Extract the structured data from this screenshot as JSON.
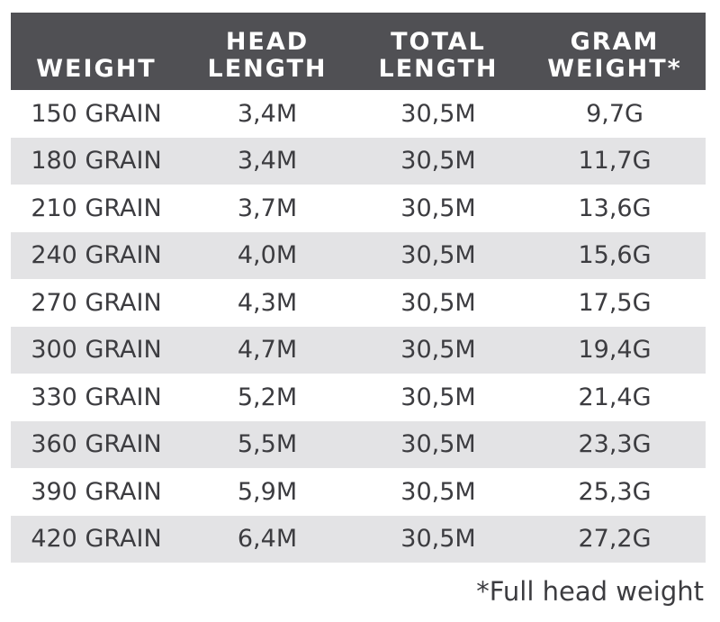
{
  "table": {
    "headers": [
      {
        "lines": [
          "",
          "WEIGHT"
        ]
      },
      {
        "lines": [
          "HEAD",
          "LENGTH"
        ]
      },
      {
        "lines": [
          "TOTAL",
          "LENGTH"
        ]
      },
      {
        "lines": [
          "GRAM",
          "WEIGHT*"
        ]
      }
    ],
    "rows": [
      [
        "150 GRAIN",
        "3,4M",
        "30,5M",
        "9,7G"
      ],
      [
        "180 GRAIN",
        "3,4M",
        "30,5M",
        "11,7G"
      ],
      [
        "210 GRAIN",
        "3,7M",
        "30,5M",
        "13,6G"
      ],
      [
        "240 GRAIN",
        "4,0M",
        "30,5M",
        "15,6G"
      ],
      [
        "270 GRAIN",
        "4,3M",
        "30,5M",
        "17,5G"
      ],
      [
        "300 GRAIN",
        "4,7M",
        "30,5M",
        "19,4G"
      ],
      [
        "330 GRAIN",
        "5,2M",
        "30,5M",
        "21,4G"
      ],
      [
        "360 GRAIN",
        "5,5M",
        "30,5M",
        "23,3G"
      ],
      [
        "390 GRAIN",
        "5,9M",
        "30,5M",
        "25,3G"
      ],
      [
        "420 GRAIN",
        "6,4M",
        "30,5M",
        "27,2G"
      ]
    ]
  },
  "footnote": "*Full head weight",
  "colors": {
    "header_bg": "#505054",
    "header_text": "#ffffff",
    "stripe": "#e3e3e5",
    "body_text": "#3c3c40"
  }
}
